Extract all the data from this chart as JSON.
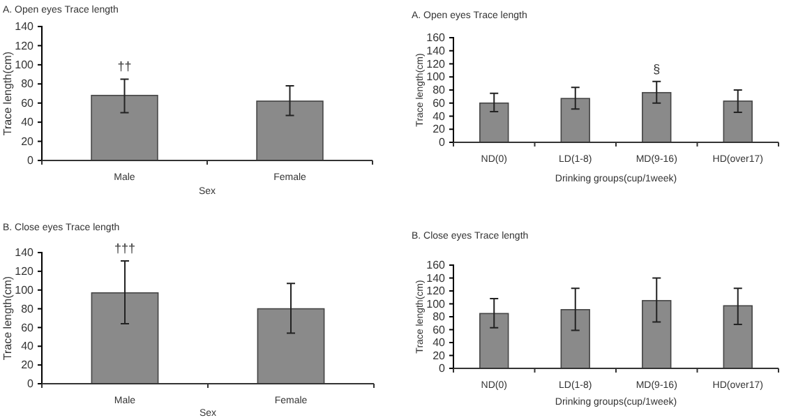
{
  "chart_data": [
    {
      "type": "bar",
      "title": "A. Open eyes Trace length",
      "xlabel": "Sex",
      "ylabel": "Trace length(cm)",
      "categories": [
        "Male",
        "Female"
      ],
      "color": "#8a8a8a",
      "values": [
        68,
        62
      ],
      "errors": [
        [
          50,
          85
        ],
        [
          47,
          78
        ]
      ],
      "ylim": [
        0,
        140
      ],
      "yticks": [
        0,
        20,
        40,
        60,
        80,
        100,
        120,
        140
      ],
      "annotations": [
        {
          "text": "††",
          "x": "Male",
          "y": 85
        }
      ]
    },
    {
      "type": "bar",
      "title": "A. Open eyes Trace length",
      "xlabel": "Drinking groups(cup/1week)",
      "ylabel": "Trace length(cm)",
      "categories": [
        "ND(0)",
        "LD(1-8)",
        "MD(9-16)",
        "HD(over17)"
      ],
      "color": "#8a8a8a",
      "values": [
        60,
        67,
        76,
        63
      ],
      "errors": [
        [
          47,
          75
        ],
        [
          51,
          84
        ],
        [
          60,
          93
        ],
        [
          46,
          80
        ]
      ],
      "ylim": [
        0,
        160
      ],
      "yticks": [
        0,
        20,
        40,
        60,
        80,
        100,
        120,
        140,
        160
      ],
      "annotations": [
        {
          "text": "§",
          "x": "MD(9-16)",
          "y": 93
        }
      ]
    },
    {
      "type": "bar",
      "title": "B. Close eyes Trace length",
      "xlabel": "Sex",
      "ylabel": "Trace length(cm)",
      "categories": [
        "Male",
        "Female"
      ],
      "color": "#8a8a8a",
      "values": [
        97,
        80
      ],
      "errors": [
        [
          64,
          131
        ],
        [
          54,
          107
        ]
      ],
      "ylim": [
        0,
        140
      ],
      "yticks": [
        0,
        20,
        40,
        60,
        80,
        100,
        120,
        140
      ],
      "annotations": [
        {
          "text": "†††",
          "x": "Male",
          "y": 131
        }
      ]
    },
    {
      "type": "bar",
      "title": "B. Close eyes Trace length",
      "xlabel": "Drinking groups(cup/1week)",
      "ylabel": "Trace length(cm)",
      "categories": [
        "ND(0)",
        "LD(1-8)",
        "MD(9-16)",
        "HD(over17)"
      ],
      "color": "#8a8a8a",
      "values": [
        85,
        91,
        105,
        97
      ],
      "errors": [
        [
          63,
          108
        ],
        [
          59,
          124
        ],
        [
          72,
          140
        ],
        [
          68,
          124
        ]
      ],
      "ylim": [
        0,
        160
      ],
      "yticks": [
        0,
        20,
        40,
        60,
        80,
        100,
        120,
        140,
        160
      ]
    }
  ]
}
